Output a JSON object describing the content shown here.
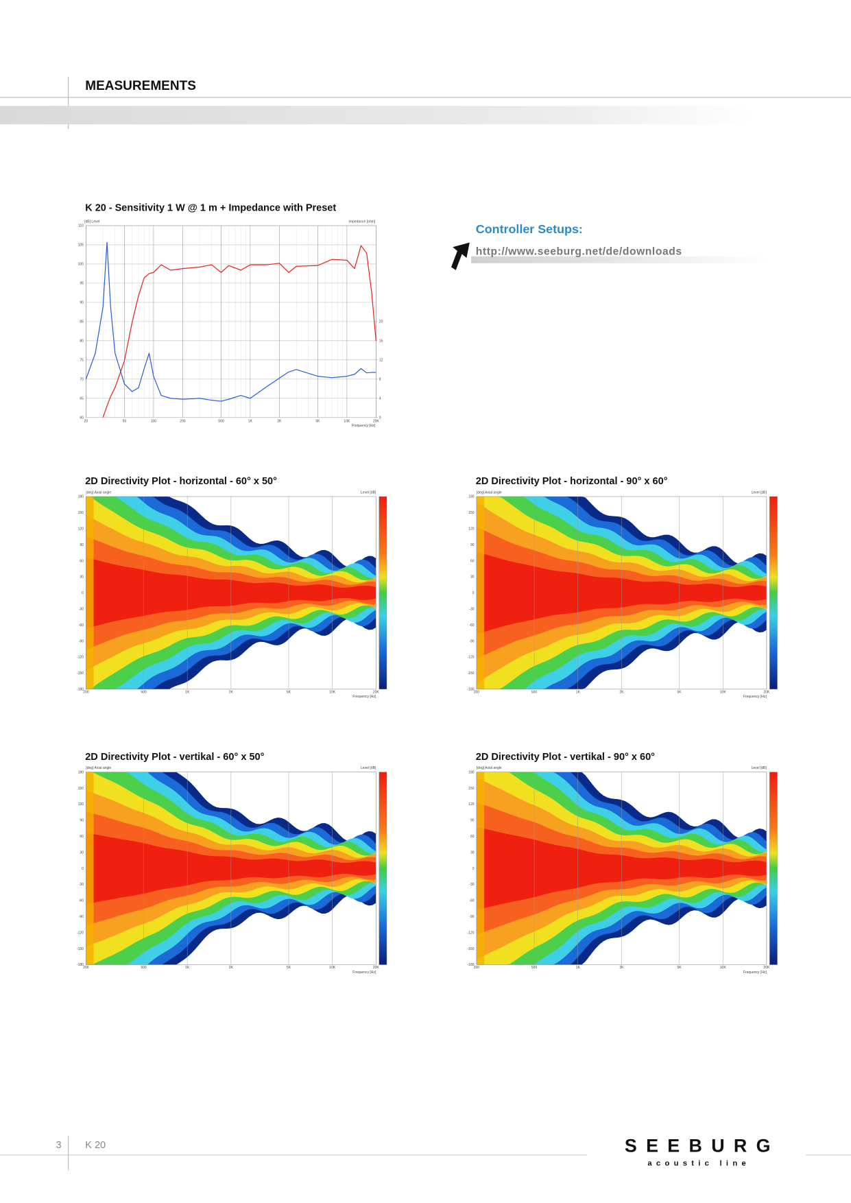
{
  "header": {
    "title": "MEASUREMENTS"
  },
  "controller": {
    "title": "Controller Setups:",
    "url": "http://www.seeburg.net/de/downloads"
  },
  "chart_data": {
    "type": "line",
    "title": "K 20 - Sensitivity 1 W @ 1 m + Impedance with Preset",
    "y_label": "[dB] Level",
    "y2_label": "Impedance [ohm]",
    "x_label": "Frequency [Hz]",
    "xscale": "log",
    "grid": true,
    "xlim": [
      20,
      20000
    ],
    "xticks": [
      20,
      50,
      100,
      200,
      500,
      {
        "value": 1000,
        "label": "1K"
      },
      {
        "value": 2000,
        "label": "2K"
      },
      {
        "value": 5000,
        "label": "5K"
      },
      {
        "value": 10000,
        "label": "10K"
      },
      {
        "value": 20000,
        "label": "20K"
      }
    ],
    "ylim": [
      60,
      110
    ],
    "yticks": [
      60,
      65,
      70,
      75,
      80,
      85,
      90,
      95,
      100,
      105,
      110
    ],
    "y2lim": [
      0,
      40
    ],
    "y2ticks": [
      0,
      4,
      8,
      12,
      16,
      20
    ],
    "x": [
      20,
      25,
      30,
      33,
      36,
      40,
      50,
      60,
      70,
      80,
      90,
      100,
      120,
      150,
      200,
      300,
      400,
      500,
      600,
      800,
      1000,
      1500,
      2000,
      2500,
      3000,
      5000,
      7000,
      10000,
      12000,
      14000,
      16000,
      18000,
      20000
    ],
    "series": [
      {
        "color": "#e8231e",
        "values": [
          null,
          null,
          60,
          63,
          65.5,
          67.8,
          74.8,
          84.8,
          91.8,
          96.4,
          97.5,
          97.8,
          99.8,
          98.4,
          98.8,
          99.2,
          99.8,
          97.8,
          99.6,
          98.4,
          99.8,
          99.8,
          100.2,
          97.8,
          99.4,
          99.6,
          101.2,
          101,
          98.8,
          104.8,
          102.8,
          92.8,
          80
        ]
      },
      {
        "color": "#2a5fd6",
        "axis": "y2",
        "values": [
          8,
          13.4,
          23,
          36.5,
          23,
          13.4,
          7,
          5.4,
          6.2,
          10.2,
          13.4,
          8.6,
          4.6,
          4,
          3.8,
          4,
          3.6,
          3.4,
          3.8,
          4.6,
          4,
          6.5,
          8.2,
          9.5,
          10,
          8.6,
          8.3,
          8.6,
          9,
          10.2,
          9.3,
          9.4,
          9.4
        ]
      }
    ]
  },
  "directivity": {
    "y_label": "[deg] Axial angle",
    "level_label": "Level [dB]",
    "x_label": "Frequency [Hz]",
    "yticks": [
      "180",
      "150",
      "120",
      "90",
      "60",
      "30",
      "0",
      "-30",
      "-60",
      "-90",
      "-120",
      "-150",
      "-180"
    ],
    "xticks": [
      "200",
      "500",
      "1K",
      "2K",
      "5K",
      "10K",
      "20K"
    ],
    "plots": [
      {
        "title": "2D Directivity Plot - horizontal - 60° x 50°"
      },
      {
        "title": "2D Directivity Plot - horizontal - 90° x 60°"
      },
      {
        "title": "2D Directivity Plot - vertikal - 60° x 50°"
      },
      {
        "title": "2D Directivity Plot - vertikal - 90° x 60°"
      }
    ]
  },
  "footer": {
    "page": "3",
    "product": "K 20",
    "brand": "SEEBURG",
    "tagline": "acoustic line"
  }
}
